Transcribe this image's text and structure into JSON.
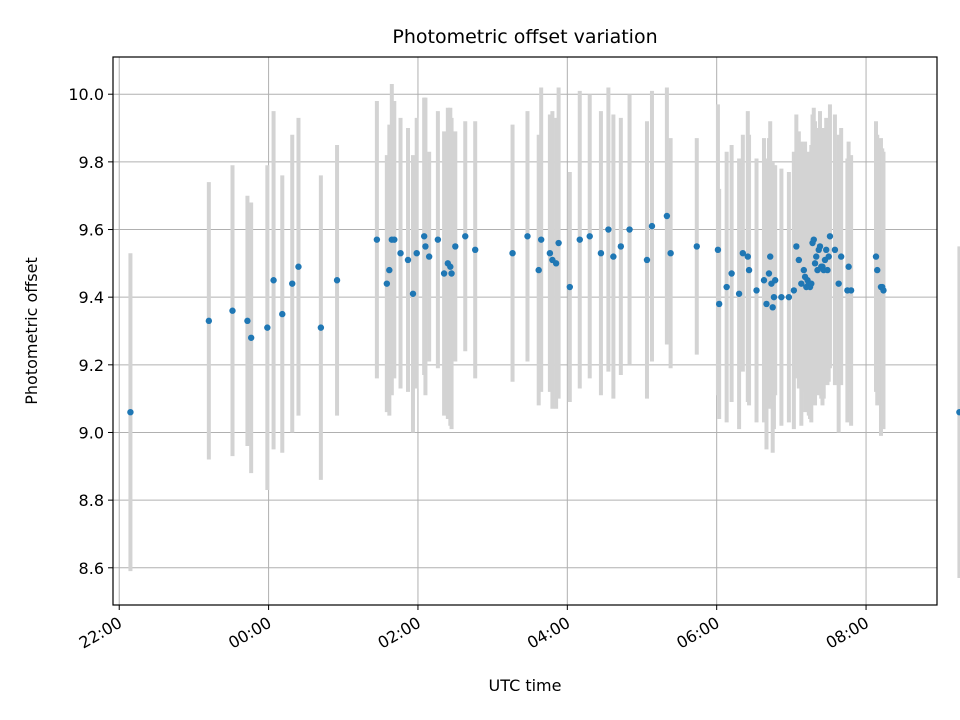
{
  "chart_data": {
    "type": "scatter",
    "title": "Photometric offset variation",
    "xlabel": "UTC time",
    "ylabel": "Photometric offset",
    "xlim": [
      "21:55",
      "08:57"
    ],
    "ylim": [
      8.49,
      10.11
    ],
    "x_ticks": [
      "22:00",
      "00:00",
      "02:00",
      "04:00",
      "06:00",
      "08:00"
    ],
    "y_ticks": [
      "8.6",
      "8.8",
      "9.0",
      "9.2",
      "9.4",
      "9.6",
      "9.8",
      "10.0"
    ],
    "grid": true,
    "colors": {
      "points": "#1f77b4",
      "error_bars": "#d3d3d3",
      "grid": "#b0b0b0"
    },
    "series": [
      {
        "x": [
          "22:09",
          "23:12",
          "23:31",
          "23:43",
          "23:46",
          "23:59",
          "00:04",
          "00:11",
          "00:19",
          "00:24",
          "00:42",
          "00:55",
          "01:27",
          "01:35",
          "01:37",
          "01:39",
          "01:41",
          "01:46",
          "01:52",
          "01:56",
          "01:59",
          "02:05",
          "02:06",
          "02:09",
          "02:16",
          "02:21",
          "02:24",
          "02:26",
          "02:27",
          "02:30",
          "02:38",
          "02:46",
          "03:16",
          "03:28",
          "03:37",
          "03:39",
          "03:46",
          "03:48",
          "03:51",
          "03:53",
          "04:02",
          "04:10",
          "04:18",
          "04:27",
          "04:33",
          "04:37",
          "04:43",
          "04:50",
          "05:04",
          "05:08",
          "05:20",
          "05:23",
          "05:44",
          "06:01",
          "06:02",
          "06:08",
          "06:12",
          "06:18",
          "06:21",
          "06:25",
          "06:26",
          "06:32",
          "06:38",
          "06:40",
          "06:42",
          "06:43",
          "06:44",
          "06:45",
          "06:46",
          "06:47",
          "06:52",
          "06:58",
          "07:02",
          "07:04",
          "07:06",
          "07:08",
          "07:10",
          "07:11",
          "07:12",
          "07:13",
          "07:14",
          "07:15",
          "07:16",
          "07:17",
          "07:18",
          "07:19",
          "07:20",
          "07:21",
          "07:22",
          "07:23",
          "07:24",
          "07:25",
          "07:26",
          "07:27",
          "07:28",
          "07:29",
          "07:30",
          "07:31",
          "07:35",
          "07:38",
          "07:40",
          "07:45",
          "07:46",
          "07:48",
          "08:08",
          "08:09",
          "08:12",
          "08:13",
          "08:14",
          "09:15"
        ],
        "y": [
          9.06,
          9.33,
          9.36,
          9.33,
          9.28,
          9.31,
          9.45,
          9.35,
          9.44,
          9.49,
          9.31,
          9.45,
          9.57,
          9.44,
          9.48,
          9.57,
          9.57,
          9.53,
          9.51,
          9.41,
          9.53,
          9.58,
          9.55,
          9.52,
          9.57,
          9.47,
          9.5,
          9.49,
          9.47,
          9.55,
          9.58,
          9.54,
          9.53,
          9.58,
          9.48,
          9.57,
          9.53,
          9.51,
          9.5,
          9.56,
          9.43,
          9.57,
          9.58,
          9.53,
          9.6,
          9.52,
          9.55,
          9.6,
          9.51,
          9.61,
          9.64,
          9.53,
          9.55,
          9.54,
          9.38,
          9.43,
          9.47,
          9.41,
          9.53,
          9.52,
          9.48,
          9.42,
          9.45,
          9.38,
          9.47,
          9.52,
          9.44,
          9.37,
          9.4,
          9.45,
          9.4,
          9.4,
          9.42,
          9.55,
          9.51,
          9.44,
          9.48,
          9.46,
          9.43,
          9.45,
          9.44,
          9.43,
          9.44,
          9.56,
          9.57,
          9.5,
          9.52,
          9.48,
          9.54,
          9.55,
          9.49,
          9.49,
          9.48,
          9.51,
          9.54,
          9.48,
          9.52,
          9.58,
          9.54,
          9.44,
          9.52,
          9.42,
          9.49,
          9.42,
          9.52,
          9.48,
          9.43,
          9.43,
          9.42,
          9.06
        ],
        "yerr": [
          0.47,
          0.41,
          0.43,
          0.37,
          0.4,
          0.48,
          0.5,
          0.41,
          0.44,
          0.44,
          0.45,
          0.4,
          0.41,
          0.38,
          0.43,
          0.46,
          0.41,
          0.4,
          0.39,
          0.41,
          0.4,
          0.41,
          0.44,
          0.31,
          0.38,
          0.42,
          0.46,
          0.47,
          0.46,
          0.34,
          0.34,
          0.38,
          0.38,
          0.37,
          0.4,
          0.45,
          0.41,
          0.44,
          0.43,
          0.46,
          0.34,
          0.44,
          0.42,
          0.42,
          0.42,
          0.42,
          0.38,
          0.4,
          0.41,
          0.4,
          0.38,
          0.34,
          0.32,
          0.43,
          0.34,
          0.4,
          0.38,
          0.4,
          0.35,
          0.43,
          0.4,
          0.39,
          0.42,
          0.43,
          0.4,
          0.4,
          0.35,
          0.43,
          0.39,
          0.34,
          0.38,
          0.37,
          0.41,
          0.39,
          0.38,
          0.42,
          0.36,
          0.4,
          0.34,
          0.37,
          0.39,
          0.39,
          0.41,
          0.38,
          0.39,
          0.42,
          0.34,
          0.37,
          0.36,
          0.4,
          0.39,
          0.41,
          0.38,
          0.36,
          0.39,
          0.34,
          0.37,
          0.39,
          0.4,
          0.44,
          0.38,
          0.39,
          0.37,
          0.4,
          0.4,
          0.4,
          0.44,
          0.41,
          0.41,
          0.49
        ]
      }
    ]
  }
}
